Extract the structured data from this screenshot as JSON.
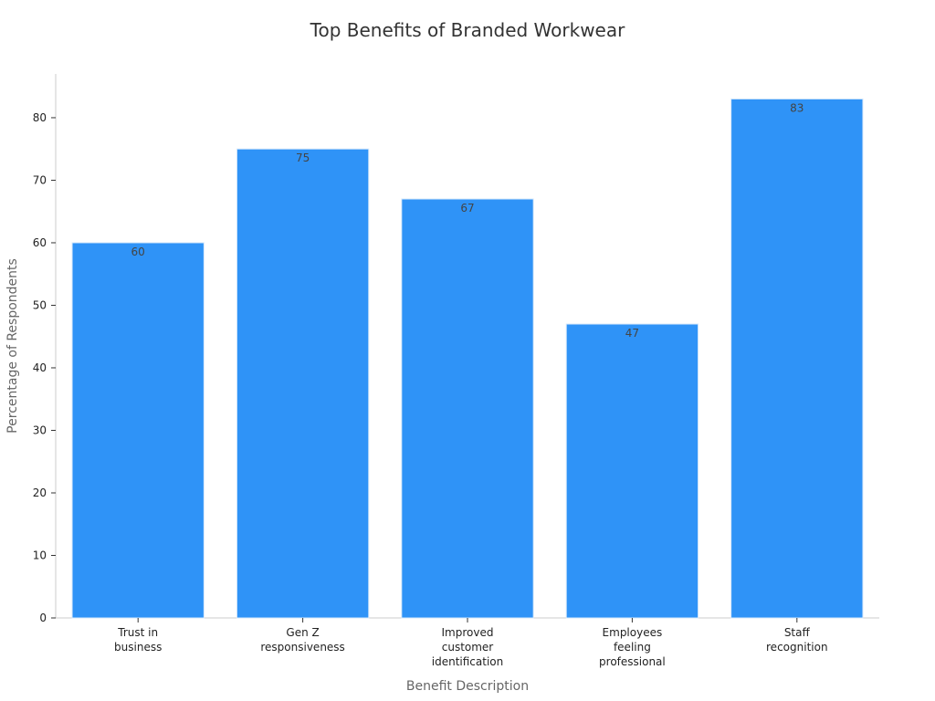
{
  "chart_data": {
    "type": "bar",
    "title": "Top Benefits of Branded Workwear",
    "xlabel": "Benefit Description",
    "ylabel": "Percentage of Respondents",
    "categories": [
      "Trust in business",
      "Gen Z responsiveness",
      "Improved customer identification",
      "Employees feeling professional",
      "Staff recognition"
    ],
    "category_label_lines": [
      [
        "Trust in",
        "business"
      ],
      [
        "Gen Z",
        "responsiveness"
      ],
      [
        "Improved",
        "customer",
        "identification"
      ],
      [
        "Employees",
        "feeling",
        "professional"
      ],
      [
        "Staff",
        "recognition"
      ]
    ],
    "values": [
      60,
      75,
      67,
      47,
      83
    ],
    "value_labels": [
      "60",
      "75",
      "67",
      "47",
      "83"
    ],
    "ylim": [
      0,
      87
    ],
    "yticks": [
      0,
      10,
      20,
      30,
      40,
      50,
      60,
      70,
      80
    ],
    "grid": false,
    "colors": {
      "bar_fill": "#2f93f7",
      "bar_stroke": "#d6e8fb",
      "axis": "#cccccc",
      "tick_text": "#222222",
      "title_text": "#333333",
      "axis_title_text": "#666666",
      "data_label_text": "#444444"
    }
  }
}
